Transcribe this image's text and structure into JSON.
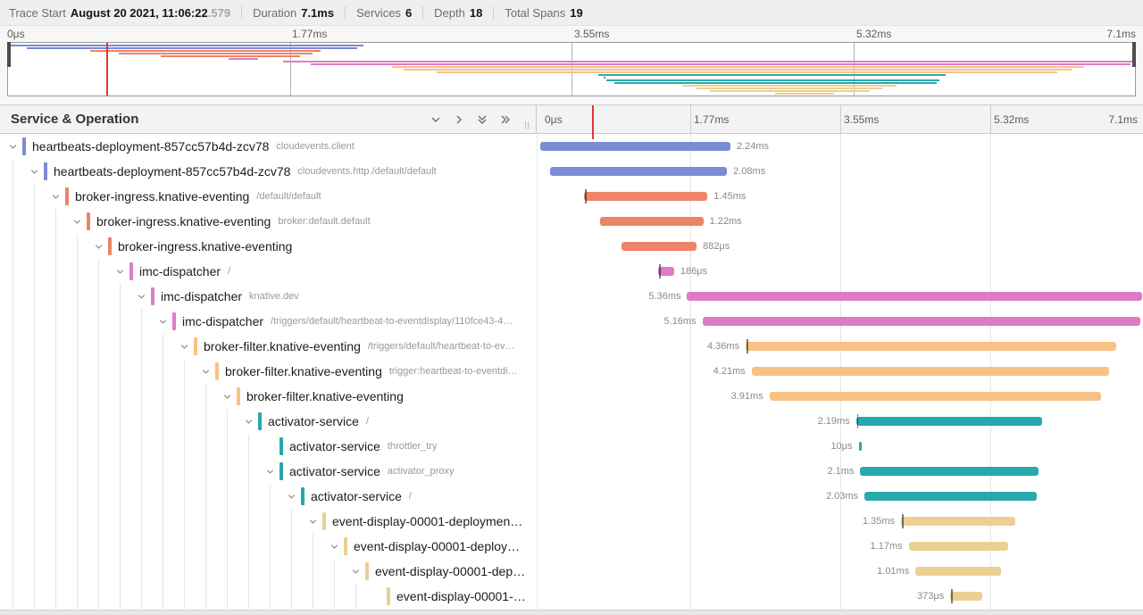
{
  "trace_duration_ms": 7.1,
  "colors": {
    "heartbeats": "#7a8cd4",
    "broker_ingress": "#ee8367",
    "imc_dispatcher": "#dd7cc5",
    "broker_filter": "#f9c184",
    "activator": "#29a8ad",
    "event_display": "#ecd092",
    "cursor": "#e23535"
  },
  "topbar": {
    "trace_start_label": "Trace Start",
    "trace_start_value": "August 20 2021, 11:06:22",
    "trace_start_fraction": ".579",
    "duration_label": "Duration",
    "duration_value": "7.1ms",
    "services_label": "Services",
    "services_value": "6",
    "depth_label": "Depth",
    "depth_value": "18",
    "total_spans_label": "Total Spans",
    "total_spans_value": "19"
  },
  "minimap": {
    "ticks": [
      "0μs",
      "1.77ms",
      "3.55ms",
      "5.32ms",
      "7.1ms"
    ],
    "cursor_pct": 8.7
  },
  "timeline_header": {
    "title": "Service & Operation",
    "ticks": [
      "0μs",
      "1.77ms",
      "3.55ms",
      "5.32ms",
      "7.1ms"
    ],
    "cursor_pct": 8.7
  },
  "spans": [
    {
      "depth": 0,
      "service": "heartbeats-deployment-857cc57b4d-zcv78",
      "operation": "cloudevents.client",
      "color": "heartbeats",
      "start_ms": 0.0,
      "duration_ms": 2.24,
      "duration_label": "2.24ms",
      "label_side": "right",
      "marker": false,
      "expandable": true
    },
    {
      "depth": 1,
      "service": "heartbeats-deployment-857cc57b4d-zcv78",
      "operation": "cloudevents.http./default/default",
      "color": "heartbeats",
      "start_ms": 0.12,
      "duration_ms": 2.08,
      "duration_label": "2.08ms",
      "label_side": "right",
      "marker": false,
      "expandable": true
    },
    {
      "depth": 2,
      "service": "broker-ingress.knative-eventing",
      "operation": "/default/default",
      "color": "broker_ingress",
      "start_ms": 0.52,
      "duration_ms": 1.45,
      "duration_label": "1.45ms",
      "label_side": "right",
      "marker": true,
      "expandable": true
    },
    {
      "depth": 3,
      "service": "broker-ingress.knative-eventing",
      "operation": "broker:default.default",
      "color": "broker_ingress",
      "start_ms": 0.7,
      "duration_ms": 1.22,
      "duration_label": "1.22ms",
      "label_side": "right",
      "marker": false,
      "expandable": true
    },
    {
      "depth": 4,
      "service": "broker-ingress.knative-eventing",
      "operation": "",
      "color": "broker_ingress",
      "start_ms": 0.96,
      "duration_ms": 0.882,
      "duration_label": "882μs",
      "label_side": "right",
      "marker": false,
      "expandable": true
    },
    {
      "depth": 5,
      "service": "imc-dispatcher",
      "operation": "/",
      "color": "imc_dispatcher",
      "start_ms": 1.39,
      "duration_ms": 0.186,
      "duration_label": "186μs",
      "label_side": "right",
      "marker": true,
      "expandable": true
    },
    {
      "depth": 6,
      "service": "imc-dispatcher",
      "operation": "knative.dev",
      "color": "imc_dispatcher",
      "start_ms": 1.73,
      "duration_ms": 5.36,
      "duration_label": "5.36ms",
      "label_side": "left",
      "marker": false,
      "expandable": true
    },
    {
      "depth": 7,
      "service": "imc-dispatcher",
      "operation": "/triggers/default/heartbeat-to-eventdisplay/110fce43-4…",
      "color": "imc_dispatcher",
      "start_ms": 1.91,
      "duration_ms": 5.16,
      "duration_label": "5.16ms",
      "label_side": "left",
      "marker": false,
      "expandable": true
    },
    {
      "depth": 8,
      "service": "broker-filter.knative-eventing",
      "operation": "/triggers/default/heartbeat-to-ev…",
      "color": "broker_filter",
      "start_ms": 2.42,
      "duration_ms": 4.36,
      "duration_label": "4.36ms",
      "label_side": "left",
      "marker": true,
      "expandable": true
    },
    {
      "depth": 9,
      "service": "broker-filter.knative-eventing",
      "operation": "trigger:heartbeat-to-eventdi…",
      "color": "broker_filter",
      "start_ms": 2.49,
      "duration_ms": 4.21,
      "duration_label": "4.21ms",
      "label_side": "left",
      "marker": false,
      "expandable": true
    },
    {
      "depth": 10,
      "service": "broker-filter.knative-eventing",
      "operation": "",
      "color": "broker_filter",
      "start_ms": 2.7,
      "duration_ms": 3.91,
      "duration_label": "3.91ms",
      "label_side": "left",
      "marker": false,
      "expandable": true
    },
    {
      "depth": 11,
      "service": "activator-service",
      "operation": "/",
      "color": "activator",
      "start_ms": 3.72,
      "duration_ms": 2.19,
      "duration_label": "2.19ms",
      "label_side": "left",
      "marker": true,
      "expandable": true
    },
    {
      "depth": 12,
      "service": "activator-service",
      "operation": "throttler_try",
      "color": "activator",
      "start_ms": 3.75,
      "duration_ms": 0.01,
      "duration_label": "10μs",
      "label_side": "left",
      "marker": false,
      "expandable": false
    },
    {
      "depth": 12,
      "service": "activator-service",
      "operation": "activator_proxy",
      "color": "activator",
      "start_ms": 3.77,
      "duration_ms": 2.1,
      "duration_label": "2.1ms",
      "label_side": "left",
      "marker": false,
      "expandable": true
    },
    {
      "depth": 13,
      "service": "activator-service",
      "operation": "/",
      "color": "activator",
      "start_ms": 3.82,
      "duration_ms": 2.03,
      "duration_label": "2.03ms",
      "label_side": "left",
      "marker": false,
      "expandable": true
    },
    {
      "depth": 14,
      "service": "event-display-00001-deploymen…",
      "operation": "",
      "color": "event_display",
      "start_ms": 4.25,
      "duration_ms": 1.35,
      "duration_label": "1.35ms",
      "label_side": "left",
      "marker": true,
      "expandable": true
    },
    {
      "depth": 15,
      "service": "event-display-00001-deploy…",
      "operation": "",
      "color": "event_display",
      "start_ms": 4.34,
      "duration_ms": 1.17,
      "duration_label": "1.17ms",
      "label_side": "left",
      "marker": false,
      "expandable": true
    },
    {
      "depth": 16,
      "service": "event-display-00001-dep…",
      "operation": "",
      "color": "event_display",
      "start_ms": 4.42,
      "duration_ms": 1.01,
      "duration_label": "1.01ms",
      "label_side": "left",
      "marker": false,
      "expandable": true
    },
    {
      "depth": 17,
      "service": "event-display-00001-…",
      "operation": "",
      "color": "event_display",
      "start_ms": 4.83,
      "duration_ms": 0.373,
      "duration_label": "373μs",
      "label_side": "left",
      "marker": true,
      "expandable": false
    }
  ]
}
